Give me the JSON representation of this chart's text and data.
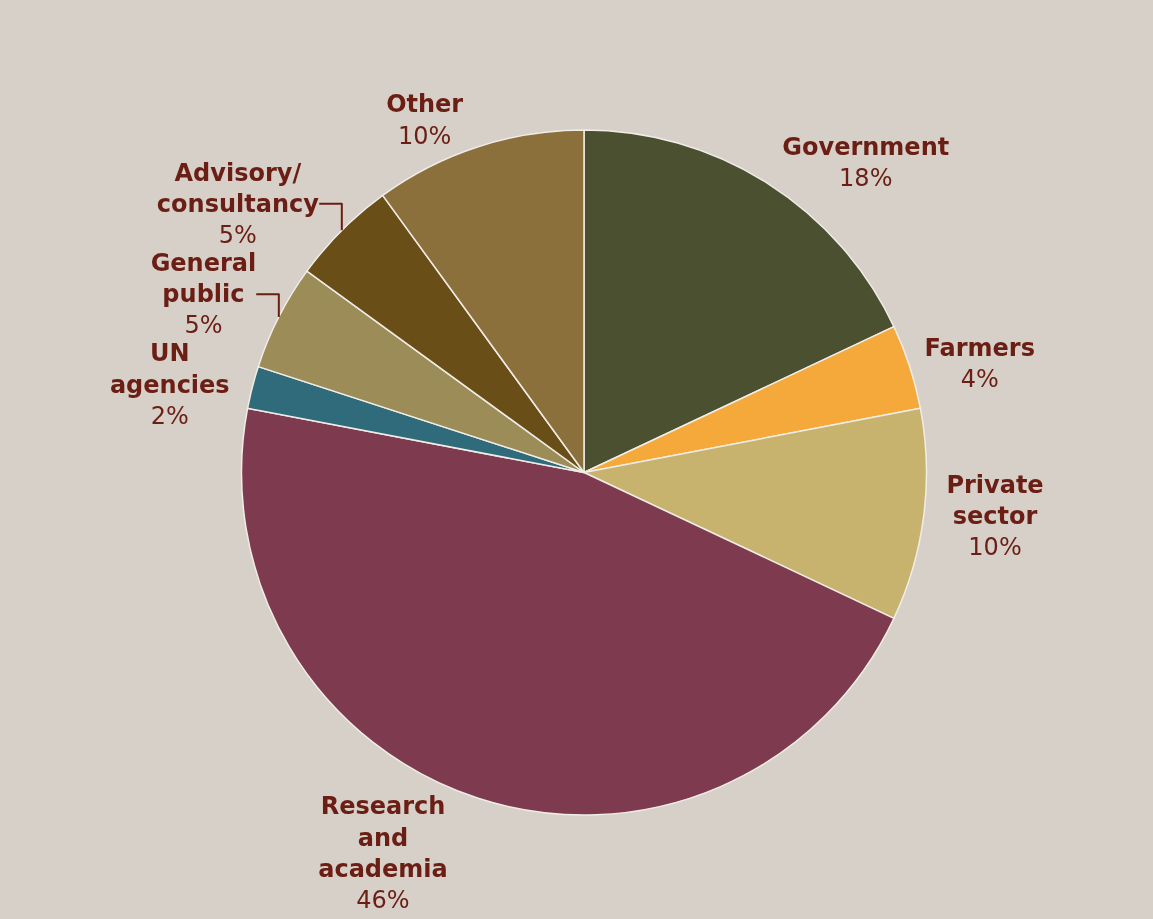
{
  "chart_data": {
    "type": "pie",
    "categories": [
      "Government",
      "Farmers",
      "Private sector",
      "Research and academia",
      "UN agencies",
      "General public",
      "Advisory/ consultancy",
      "Other"
    ],
    "values": [
      18,
      4,
      10,
      46,
      2,
      5,
      5,
      10
    ],
    "colors": [
      "#4a5030",
      "#f4a93a",
      "#c8b36e",
      "#7e3a4e",
      "#2f6b7a",
      "#9c8c58",
      "#6a4e18",
      "#8b703c"
    ],
    "value_labels": [
      "18%",
      "4%",
      "10%",
      "46%",
      "2%",
      "5%",
      "5%",
      "10%"
    ],
    "legend": false
  }
}
